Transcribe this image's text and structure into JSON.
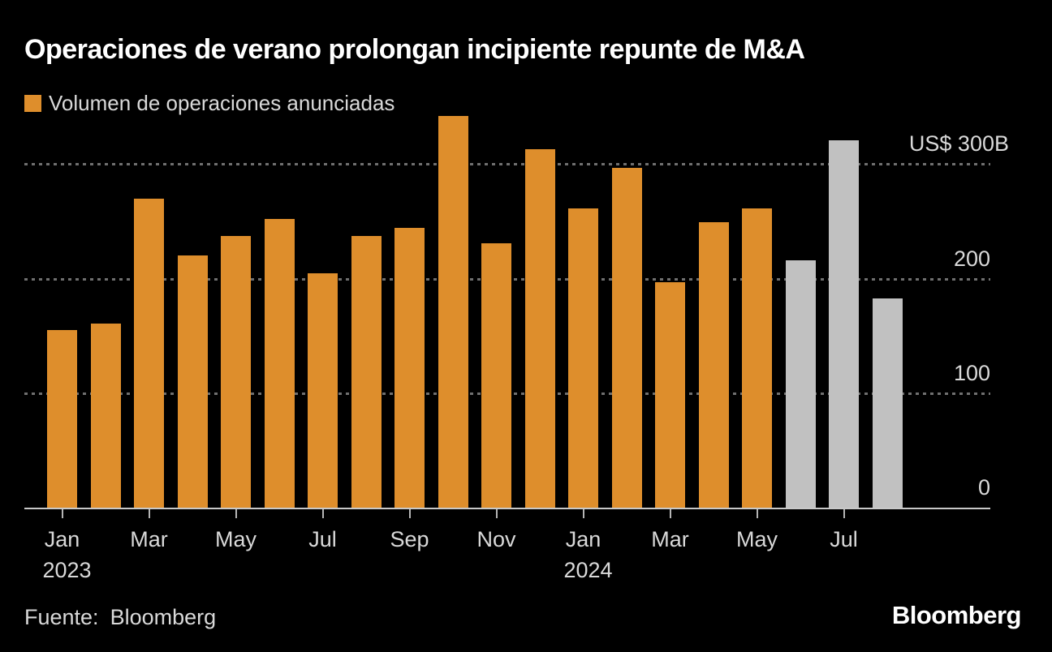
{
  "chart_data": {
    "type": "bar",
    "title": "Operaciones de verano prolongan incipiente repunte de M&A",
    "legend": [
      {
        "label": "Volumen de operaciones anunciadas",
        "color": "#DE8E2C"
      }
    ],
    "categories": [
      "Jan 2023",
      "Feb 2023",
      "Mar 2023",
      "Apr 2023",
      "May 2023",
      "Jun 2023",
      "Jul 2023",
      "Aug 2023",
      "Sep 2023",
      "Oct 2023",
      "Nov 2023",
      "Dec 2023",
      "Jan 2024",
      "Feb 2024",
      "Mar 2024",
      "Apr 2024",
      "May 2024",
      "Jun 2024",
      "Jul 2024",
      "Aug 2024"
    ],
    "values": [
      155,
      161,
      270,
      220,
      237,
      252,
      205,
      237,
      244,
      342,
      231,
      313,
      261,
      297,
      197,
      249,
      261,
      216,
      321,
      183
    ],
    "value_unit": "US$ billions",
    "bar_color": "#DE8E2C",
    "recent_bar_color": "#C1C1C1",
    "recent_from_index": 17,
    "ylim": [
      0,
      350
    ],
    "grid": "dotted-horizontal",
    "yaxis": {
      "side": "right",
      "ticks": [
        {
          "value": 0,
          "label": "0"
        },
        {
          "value": 100,
          "label": "100"
        },
        {
          "value": 200,
          "label": "200"
        },
        {
          "value": 300,
          "label": "US$ 300B",
          "wide": true
        }
      ]
    },
    "xaxis": {
      "ticks": [
        {
          "i": 0,
          "label": "Jan",
          "sub": "2023"
        },
        {
          "i": 2,
          "label": "Mar"
        },
        {
          "i": 4,
          "label": "May"
        },
        {
          "i": 6,
          "label": "Jul"
        },
        {
          "i": 8,
          "label": "Sep"
        },
        {
          "i": 10,
          "label": "Nov"
        },
        {
          "i": 12,
          "label": "Jan",
          "sub": "2024"
        },
        {
          "i": 14,
          "label": "Mar"
        },
        {
          "i": 16,
          "label": "May"
        },
        {
          "i": 18,
          "label": "Jul"
        }
      ]
    },
    "colors": {
      "background": "#000000",
      "title_text": "#FFFFFF",
      "label_text": "#D9D9D9",
      "gridline": "#6F6F6F",
      "axis_line": "#C8C8C8",
      "tick_mark": "#B5B5B5"
    }
  },
  "footer": {
    "source_label": "Fuente:",
    "source_value": "Bloomberg",
    "logo": "Bloomberg"
  }
}
